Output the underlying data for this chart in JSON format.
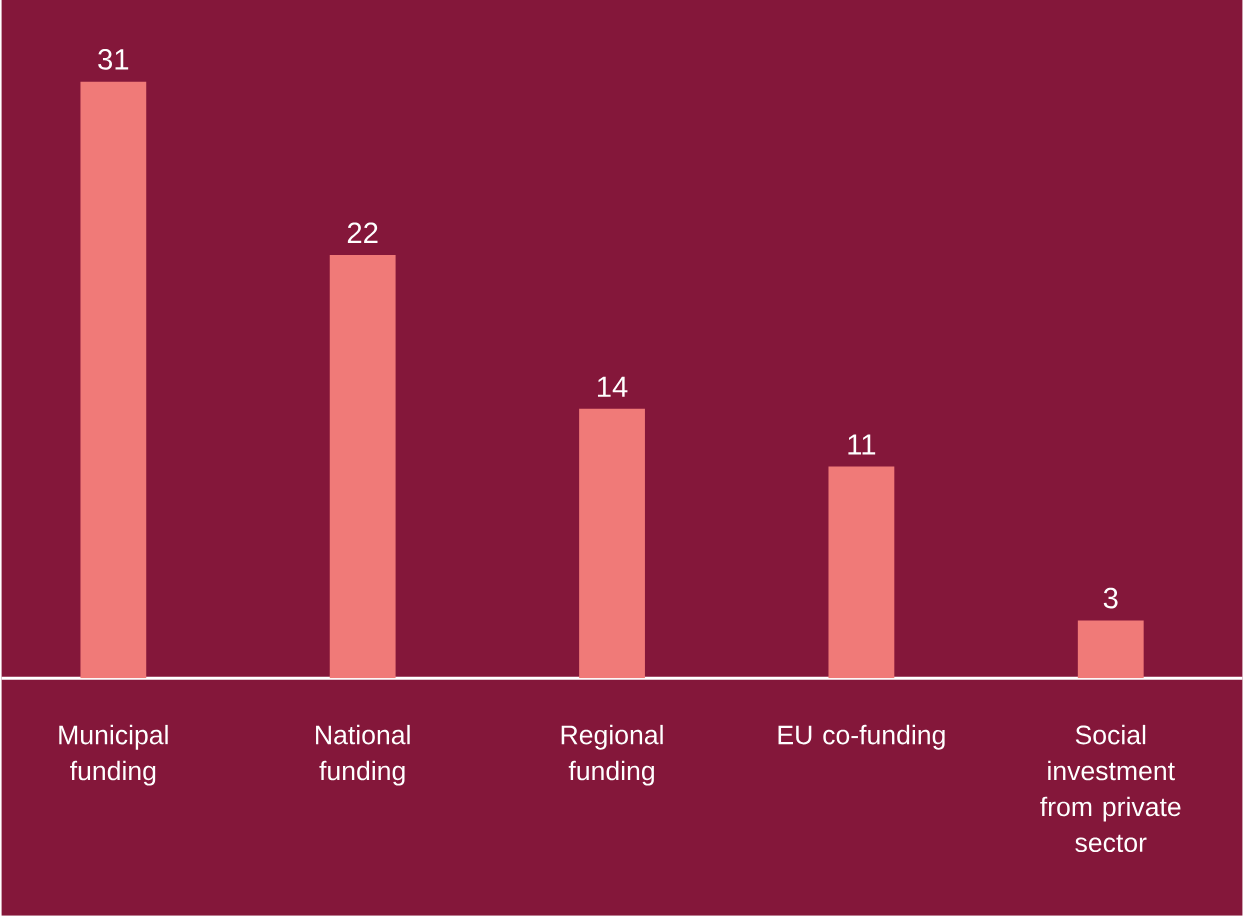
{
  "chart_data": {
    "type": "bar",
    "categories": [
      "Municipal funding",
      "National funding",
      "Regional funding",
      "EU co-funding",
      "Social investment from private sector"
    ],
    "values": [
      31,
      22,
      14,
      11,
      3
    ],
    "color": "#f07a78",
    "data_labels": true
  }
}
